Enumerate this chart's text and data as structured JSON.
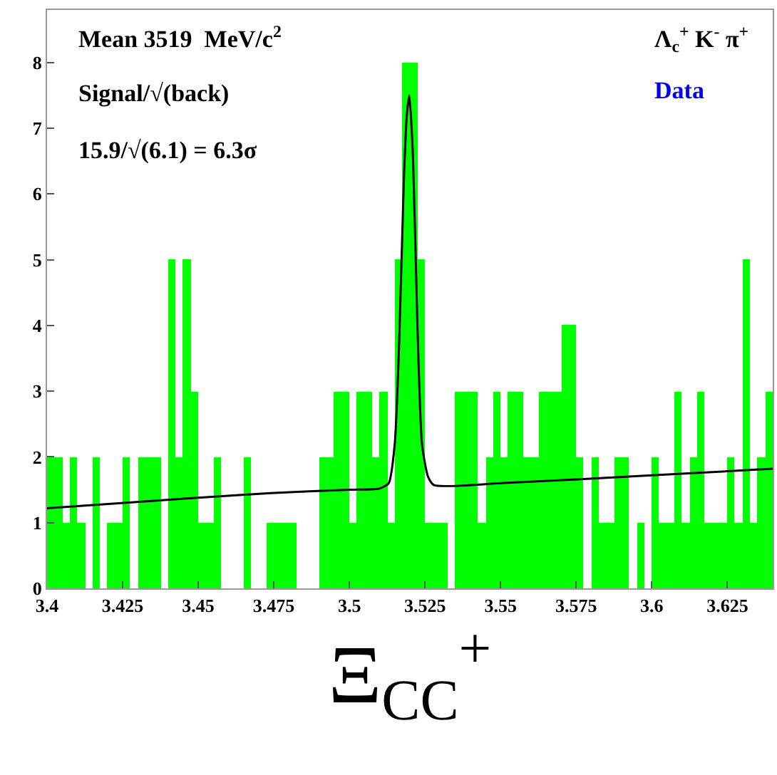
{
  "chart_data": {
    "type": "histogram",
    "bins": [
      3.4,
      3.4025,
      3.405,
      3.4075,
      3.41,
      3.4125,
      3.415,
      3.4175,
      3.42,
      3.4225,
      3.425,
      3.4275,
      3.43,
      3.4325,
      3.435,
      3.4375,
      3.44,
      3.4425,
      3.445,
      3.4475,
      3.45,
      3.4525,
      3.455,
      3.4575,
      3.46,
      3.4625,
      3.465,
      3.4675,
      3.47,
      3.4725,
      3.475,
      3.4775,
      3.48,
      3.4825,
      3.485,
      3.4875,
      3.49,
      3.4925,
      3.495,
      3.4975,
      3.5,
      3.5025,
      3.505,
      3.5075,
      3.51,
      3.5125,
      3.515,
      3.5175,
      3.52,
      3.5225,
      3.525,
      3.5275,
      3.53,
      3.5325,
      3.535,
      3.5375,
      3.54,
      3.5425,
      3.545,
      3.5475,
      3.55,
      3.5525,
      3.555,
      3.5575,
      3.56,
      3.5625,
      3.565,
      3.5675,
      3.57,
      3.5725,
      3.575,
      3.5775,
      3.58,
      3.5825,
      3.585,
      3.5875,
      3.59,
      3.5925,
      3.595,
      3.5975,
      3.6,
      3.6025,
      3.605,
      3.6075,
      3.61,
      3.6125,
      3.615,
      3.6175,
      3.62,
      3.6225,
      3.625,
      3.6275,
      3.63,
      3.6325,
      3.635,
      3.6375,
      3.64
    ],
    "values": [
      2,
      2,
      1,
      2,
      1,
      0,
      2,
      0,
      1,
      1,
      2,
      0,
      2,
      2,
      2,
      0,
      5,
      2,
      5,
      3,
      1,
      1,
      2,
      0,
      0,
      0,
      2,
      0,
      0,
      1,
      1,
      1,
      1,
      0,
      0,
      0,
      2,
      2,
      3,
      3,
      1,
      3,
      3,
      2,
      3,
      1,
      5,
      8,
      8,
      5,
      1,
      1,
      1,
      0,
      3,
      3,
      3,
      1,
      2,
      3,
      2,
      3,
      3,
      2,
      2,
      3,
      3,
      3,
      4,
      4,
      2,
      0,
      2,
      1,
      1,
      2,
      2,
      0,
      1,
      0,
      2,
      1,
      1,
      3,
      1,
      2,
      3,
      1,
      1,
      1,
      2,
      1,
      5,
      1,
      2,
      3
    ],
    "color": "#00ff00",
    "series": [
      {
        "type": "line",
        "color": "#000000",
        "x": [
          3.4,
          3.45,
          3.474,
          3.5,
          3.51,
          3.513,
          3.515,
          3.5165,
          3.518,
          3.519,
          3.5198,
          3.521,
          3.5225,
          3.524,
          3.526,
          3.528,
          3.55,
          3.6,
          3.64
        ],
        "values": [
          1.22,
          1.38,
          1.45,
          1.5,
          1.52,
          1.6,
          2.2,
          3.8,
          6.2,
          7.2,
          7.5,
          6.6,
          4.0,
          2.2,
          1.7,
          1.57,
          1.6,
          1.72,
          1.82
        ]
      }
    ],
    "xlim": [
      3.4,
      3.64
    ],
    "ylim": [
      0,
      8.8
    ],
    "xticks": [
      3.4,
      3.425,
      3.45,
      3.475,
      3.5,
      3.525,
      3.55,
      3.575,
      3.6,
      3.625
    ],
    "yticks": [
      0,
      1,
      2,
      3,
      4,
      5,
      6,
      7,
      8
    ],
    "xlabel": "Ξ$_{CC}$$^{+}$",
    "annotations": [
      "Mean 3519  MeV/c$^{2}$",
      "Signal/√(back)",
      "15.9/√(6.1) = 6.3σ",
      "Λ$_{c}$$^{+}$ K$^{-}$ π$^{+}$",
      "Data"
    ]
  }
}
